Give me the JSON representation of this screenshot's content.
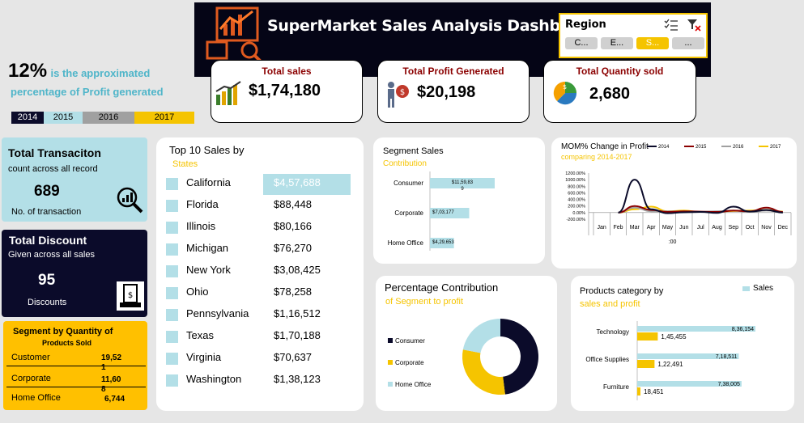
{
  "header": {
    "title": "SuperMarket  Sales Analysis Dashboard"
  },
  "region": {
    "label": "Region",
    "buttons": [
      "C...",
      "E...",
      "S...",
      "..."
    ]
  },
  "kpis": {
    "sales": {
      "title": "Total sales",
      "value": "$1,74,180"
    },
    "profit": {
      "title": "Total Profit  Generated",
      "value": "$20,198"
    },
    "quantity": {
      "title": "Total Quantity sold",
      "value": "2,680"
    }
  },
  "profit_pct": {
    "value": "12%",
    "text1": "is the approximated",
    "text2": "percentage of Profit generated",
    "years": [
      "2014",
      "2015",
      "2016",
      "2017"
    ]
  },
  "transactions": {
    "title": "Total Transaciton",
    "subtitle": "count across all record",
    "value": "689",
    "footer": "No. of transaction"
  },
  "discount": {
    "title": "Total  Discount",
    "subtitle": "Given across all sales",
    "value": "95",
    "footer": "Discounts"
  },
  "segment_qty": {
    "title": "Segment by Quantity of",
    "title2": "Products  Sold",
    "rows": [
      {
        "name": "Customer",
        "value": "19,52",
        "extra": "1"
      },
      {
        "name": "Corporate",
        "value": "11,60",
        "extra": "8"
      },
      {
        "name": "Home Office",
        "value": "6,744",
        "extra": ""
      }
    ]
  },
  "top10": {
    "title": "Top 10 Sales by",
    "subtitle": "States",
    "rows": [
      {
        "state": "California",
        "value": "$4,57,688"
      },
      {
        "state": "Florida",
        "value": "$88,448"
      },
      {
        "state": "Illinois",
        "value": "$80,166"
      },
      {
        "state": "Michigan",
        "value": "$76,270"
      },
      {
        "state": "New York",
        "value": "$3,08,425"
      },
      {
        "state": "Ohio",
        "value": "$78,258"
      },
      {
        "state": "Pennsylvania",
        "value": "$1,16,512"
      },
      {
        "state": "Texas",
        "value": "$1,70,188"
      },
      {
        "state": "Virginia",
        "value": "$70,637"
      },
      {
        "state": "Washington",
        "value": "$1,38,123"
      }
    ]
  },
  "segment_sales": {
    "title": "Segment Sales",
    "subtitle": "Contribution"
  },
  "mom": {
    "title": "MOM% Change in Profit",
    "subtitle": "comparing 2014-2017",
    "xlabel": ":00"
  },
  "pct_contrib": {
    "title": "Percentage Contribution",
    "subtitle": "of Segment to profit"
  },
  "category": {
    "title": "Products category by",
    "subtitle": "sales and profit",
    "legend": "Sales"
  },
  "colors": {
    "navy": "#0b0b2a",
    "cyan": "#b3dfe7",
    "gold": "#f5c400",
    "maroon": "#8b0000",
    "gray": "#a0a0a0"
  },
  "chart_data": [
    {
      "type": "bar",
      "categories": [
        "Consumer",
        "Corporate",
        "Home Office"
      ],
      "values": [
        1159839,
        703177,
        429653
      ],
      "labels": [
        "$11,59,83\n9",
        "$7,03,177",
        "$4,29,653"
      ]
    },
    {
      "type": "line",
      "x": [
        "Jan",
        "Feb",
        "Mar",
        "Apr",
        "May",
        "Jun",
        "Jul",
        "Aug",
        "Sep",
        "Oct",
        "Nov",
        "Dec"
      ],
      "yticks": [
        "1200.00%",
        "1000.00%",
        "800.00%",
        "600.00%",
        "400.00%",
        "200.00%",
        "0.00%",
        "-200.00%"
      ],
      "ylim": [
        -200,
        1200
      ],
      "series": [
        {
          "name": "2014",
          "color": "#0b0b2a",
          "values": [
            0,
            0,
            1000,
            100,
            -20,
            10,
            20,
            -10,
            180,
            30,
            80,
            0
          ]
        },
        {
          "name": "2015",
          "color": "#8b0000",
          "values": [
            0,
            0,
            200,
            80,
            20,
            40,
            30,
            20,
            60,
            40,
            150,
            20
          ]
        },
        {
          "name": "2016",
          "color": "#a0a0a0",
          "values": [
            0,
            0,
            150,
            40,
            40,
            30,
            20,
            40,
            60,
            20,
            60,
            10
          ]
        },
        {
          "name": "2017",
          "color": "#f5c400",
          "values": [
            0,
            0,
            100,
            180,
            40,
            60,
            20,
            30,
            50,
            60,
            80,
            30
          ]
        }
      ]
    },
    {
      "type": "pie",
      "categories": [
        "Consumer",
        "Corporate",
        "Home Office"
      ],
      "values": [
        48,
        30,
        22
      ],
      "colors": [
        "#0b0b2a",
        "#f5c400",
        "#b3dfe7"
      ]
    },
    {
      "type": "bar",
      "categories": [
        "Technology",
        "Office Supplies",
        "Furniture"
      ],
      "series": [
        {
          "name": "Sales",
          "values": [
            836154,
            718511,
            738005
          ],
          "labels": [
            "8,36,154",
            "7,18,511",
            "7,38,005"
          ]
        },
        {
          "name": "Profit",
          "values": [
            145455,
            122491,
            18451
          ],
          "labels": [
            "1,45,455",
            "1,22,491",
            "18,451"
          ]
        }
      ]
    }
  ]
}
